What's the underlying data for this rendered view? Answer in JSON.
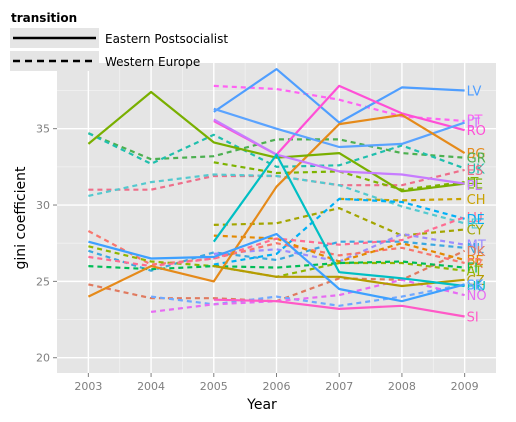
{
  "chart_data": {
    "type": "line",
    "xlabel": "Year",
    "ylabel": "gini coefficient",
    "x": [
      2003,
      2004,
      2005,
      2006,
      2007,
      2008,
      2009
    ],
    "xlim": [
      2002.5,
      2009.5
    ],
    "ylim": [
      19.0,
      39.3
    ],
    "y_ticks": [
      20,
      25,
      30,
      35
    ],
    "grid": true,
    "legend": {
      "title": "transition",
      "placement": "top-left",
      "entries": [
        {
          "label": "Eastern Postsocialist",
          "linetype": "solid"
        },
        {
          "label": "Western Europe",
          "linetype": "dashed"
        }
      ]
    },
    "series": [
      {
        "name": "LV",
        "group": "Eastern Postsocialist",
        "color": "#4f9eff",
        "values": [
          null,
          null,
          36.1,
          38.9,
          35.4,
          37.7,
          37.5
        ]
      },
      {
        "name": "PT",
        "group": "Western Europe",
        "color": "#ff62f3",
        "values": [
          null,
          null,
          37.8,
          37.6,
          36.9,
          35.8,
          35.5
        ]
      },
      {
        "name": "RO",
        "group": "Eastern Postsocialist",
        "color": "#ff4fd6",
        "values": [
          null,
          null,
          35.5,
          33.3,
          37.8,
          36.0,
          34.9
        ]
      },
      {
        "name": "LT",
        "group": "Eastern Postsocialist",
        "color": "#5aa3ff",
        "values": [
          null,
          null,
          36.3,
          35.0,
          33.8,
          34.0,
          35.4
        ]
      },
      {
        "name": "BG",
        "group": "Eastern Postsocialist",
        "color": "#e58a1a",
        "values": [
          24.0,
          26.0,
          25.0,
          31.2,
          35.3,
          35.9,
          33.4
        ]
      },
      {
        "name": "GR",
        "group": "Western Europe",
        "color": "#4cb050",
        "values": [
          34.7,
          33.0,
          33.2,
          34.3,
          34.3,
          33.4,
          33.1
        ]
      },
      {
        "name": "ES",
        "group": "Western Europe",
        "color": "#ee6e8a",
        "values": [
          31.0,
          31.0,
          31.9,
          31.9,
          31.3,
          31.3,
          32.3
        ]
      },
      {
        "name": "IT",
        "group": "Western Europe",
        "color": "#7db300",
        "values": [
          null,
          null,
          32.8,
          32.1,
          32.2,
          31.0,
          31.5
        ]
      },
      {
        "name": "EE",
        "group": "Eastern Postsocialist",
        "color": "#79af00",
        "values": [
          34.0,
          37.4,
          34.1,
          33.1,
          33.4,
          30.9,
          31.4
        ]
      },
      {
        "name": "PL",
        "group": "Eastern Postsocialist",
        "color": "#c77cff",
        "values": [
          null,
          null,
          35.6,
          33.3,
          32.2,
          32.0,
          31.4
        ]
      },
      {
        "name": "IE",
        "group": "Western Europe",
        "color": "#54c9cf",
        "values": [
          30.6,
          31.5,
          32.0,
          31.9,
          31.3,
          29.9,
          28.8
        ]
      },
      {
        "name": "CH",
        "group": "Western Europe",
        "color": "#c9a200",
        "values": [
          null,
          null,
          null,
          null,
          30.4,
          30.3,
          30.4
        ]
      },
      {
        "name": "UK",
        "group": "Western Europe",
        "color": "#1fbfad",
        "values": [
          34.7,
          32.7,
          34.6,
          32.5,
          32.6,
          33.9,
          32.4
        ]
      },
      {
        "name": "NL",
        "group": "Western Europe",
        "color": "#3ba8e0",
        "values": [
          27.0,
          25.7,
          26.9,
          26.4,
          27.6,
          27.6,
          27.2
        ]
      },
      {
        "name": "CY",
        "group": "Western Europe",
        "color": "#a3a500",
        "values": [
          null,
          null,
          28.7,
          28.8,
          29.8,
          28.0,
          28.4
        ]
      },
      {
        "name": "MT",
        "group": "Western Europe",
        "color": "#9c8cff",
        "values": [
          null,
          null,
          26.8,
          27.1,
          26.3,
          28.1,
          27.4
        ]
      },
      {
        "name": "DE",
        "group": "Western Europe",
        "color": "#00b0f6",
        "values": [
          null,
          null,
          26.1,
          26.8,
          30.4,
          30.2,
          29.1
        ]
      },
      {
        "name": "DK",
        "group": "Western Europe",
        "color": "#e07a5f",
        "values": [
          24.8,
          23.9,
          23.9,
          23.7,
          25.2,
          25.1,
          27.0
        ]
      },
      {
        "name": "FR",
        "group": "Western Europe",
        "color": "#f8766d",
        "values": [
          28.3,
          26.1,
          26.5,
          27.5,
          26.7,
          27.2,
          26.2
        ]
      },
      {
        "name": "BE",
        "group": "Western Europe",
        "color": "#e38900",
        "values": [
          null,
          null,
          28.0,
          27.8,
          26.3,
          27.5,
          26.4
        ]
      },
      {
        "name": "AT",
        "group": "Western Europe",
        "color": "#8fb600",
        "values": [
          27.3,
          26.3,
          26.0,
          25.3,
          26.2,
          26.2,
          25.7
        ]
      },
      {
        "name": "FI",
        "group": "Western Europe",
        "color": "#00bc56",
        "values": [
          26.0,
          25.8,
          26.0,
          25.9,
          26.2,
          26.3,
          25.9
        ]
      },
      {
        "name": "LU",
        "group": "Western Europe",
        "color": "#ff6c91",
        "values": [
          26.6,
          26.0,
          26.5,
          27.8,
          27.4,
          27.7,
          29.2
        ]
      },
      {
        "name": "SE",
        "group": "Western Europe",
        "color": "#6fa8ff",
        "values": [
          null,
          24.0,
          23.5,
          24.0,
          23.4,
          24.0,
          24.8
        ]
      },
      {
        "name": "CZ",
        "group": "Eastern Postsocialist",
        "color": "#b59b00",
        "values": [
          null,
          null,
          26.0,
          25.3,
          25.3,
          24.7,
          25.1
        ]
      },
      {
        "name": "HU",
        "group": "Eastern Postsocialist",
        "color": "#00bfc4",
        "values": [
          null,
          null,
          27.6,
          33.3,
          25.6,
          25.2,
          24.7
        ]
      },
      {
        "name": "SK",
        "group": "Eastern Postsocialist",
        "color": "#3da0ff",
        "values": [
          27.6,
          26.5,
          26.6,
          28.1,
          24.5,
          23.7,
          24.8
        ]
      },
      {
        "name": "NO",
        "group": "Western Europe",
        "color": "#e76bf3",
        "values": [
          null,
          23.0,
          23.5,
          23.7,
          24.1,
          25.1,
          24.1
        ]
      },
      {
        "name": "SI",
        "group": "Eastern Postsocialist",
        "color": "#ff59c7",
        "values": [
          null,
          null,
          23.8,
          23.7,
          23.2,
          23.4,
          22.7
        ]
      }
    ],
    "end_labels": [
      {
        "text": "LV",
        "color": "#4f9eff",
        "y": 37.5
      },
      {
        "text": "PT",
        "color": "#ff62f3",
        "y": 35.6
      },
      {
        "text": "LT",
        "color": "#c77cff",
        "y": 35.4
      },
      {
        "text": "RO",
        "color": "#ff4fd6",
        "y": 34.9
      },
      {
        "text": "BG",
        "color": "#e58a1a",
        "y": 33.4
      },
      {
        "text": "GR",
        "color": "#4cb050",
        "y": 33.1
      },
      {
        "text": "UK",
        "color": "#1fbfad",
        "y": 32.4
      },
      {
        "text": "ES",
        "color": "#ee6e8a",
        "y": 32.3
      },
      {
        "text": "IT",
        "color": "#7db300",
        "y": 31.5
      },
      {
        "text": "EE",
        "color": "#79af00",
        "y": 31.4
      },
      {
        "text": "PL",
        "color": "#c77cff",
        "y": 31.3
      },
      {
        "text": "CH",
        "color": "#c9a200",
        "y": 30.4
      },
      {
        "text": "LU",
        "color": "#ff6c91",
        "y": 29.2
      },
      {
        "text": "DE",
        "color": "#00b0f6",
        "y": 29.1
      },
      {
        "text": "IE",
        "color": "#54c9cf",
        "y": 28.8
      },
      {
        "text": "CY",
        "color": "#a3a500",
        "y": 28.4
      },
      {
        "text": "MT",
        "color": "#9c8cff",
        "y": 27.4
      },
      {
        "text": "NL",
        "color": "#3ba8e0",
        "y": 27.2
      },
      {
        "text": "DK",
        "color": "#e07a5f",
        "y": 27.0
      },
      {
        "text": "BE",
        "color": "#e38900",
        "y": 26.4
      },
      {
        "text": "FR",
        "color": "#f8766d",
        "y": 26.2
      },
      {
        "text": "FI",
        "color": "#00bc56",
        "y": 25.9
      },
      {
        "text": "AT",
        "color": "#8fb600",
        "y": 25.7
      },
      {
        "text": "CZ",
        "color": "#b59b00",
        "y": 25.1
      },
      {
        "text": "SK",
        "color": "#3da0ff",
        "y": 24.8
      },
      {
        "text": "HU",
        "color": "#00bfc4",
        "y": 24.7
      },
      {
        "text": "SE",
        "color": "#6fa8ff",
        "y": 24.8
      },
      {
        "text": "NO",
        "color": "#e76bf3",
        "y": 24.1
      },
      {
        "text": "SI",
        "color": "#ff59c7",
        "y": 22.7
      }
    ]
  }
}
